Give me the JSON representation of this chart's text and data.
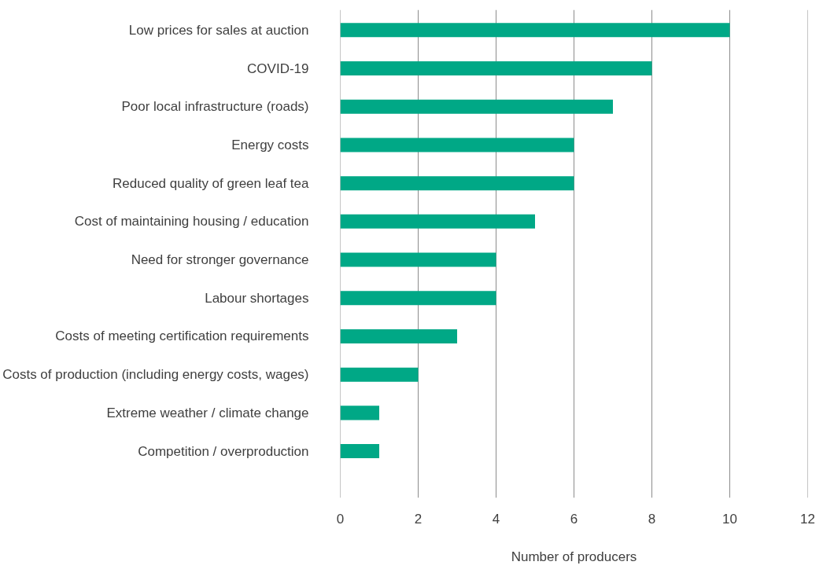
{
  "chart_data": {
    "type": "bar",
    "orientation": "horizontal",
    "xlabel": "Number of producers",
    "categories": [
      "Low prices for sales at auction",
      "COVID-19",
      "Poor local infrastructure (roads)",
      "Energy costs",
      "Reduced quality of green leaf tea",
      "Cost of maintaining housing / education",
      "Need for stronger governance",
      "Labour shortages",
      "Costs of meeting certification requirements",
      "Costs of production (including energy costs, wages)",
      "Extreme weather / climate change",
      "Competition / overproduction"
    ],
    "values": [
      10,
      8,
      7,
      6,
      6,
      5,
      4,
      4,
      3,
      2,
      1,
      1
    ],
    "color": "#00a886",
    "xlim": [
      0,
      12
    ],
    "xticks": [
      0,
      2,
      4,
      6,
      8,
      10,
      12
    ],
    "grid": "x"
  }
}
